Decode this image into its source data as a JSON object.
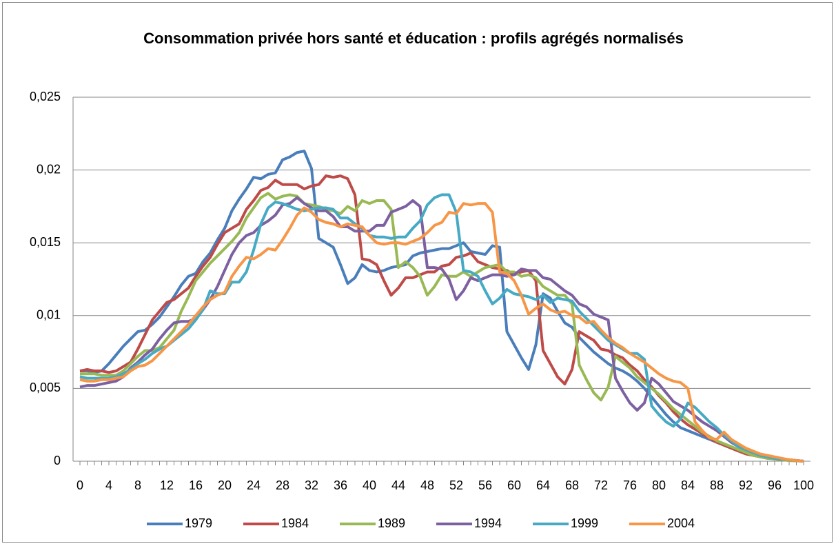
{
  "chart_data": {
    "type": "line",
    "title": "Consommation privée hors santé et éducation : profils agrégés normalisés",
    "x": [
      0,
      1,
      2,
      3,
      4,
      5,
      6,
      7,
      8,
      9,
      10,
      11,
      12,
      13,
      14,
      15,
      16,
      17,
      18,
      19,
      20,
      21,
      22,
      23,
      24,
      25,
      26,
      27,
      28,
      29,
      30,
      31,
      32,
      33,
      34,
      35,
      36,
      37,
      38,
      39,
      40,
      41,
      42,
      43,
      44,
      45,
      46,
      47,
      48,
      49,
      50,
      51,
      52,
      53,
      54,
      55,
      56,
      57,
      58,
      59,
      60,
      61,
      62,
      63,
      64,
      65,
      66,
      67,
      68,
      69,
      70,
      71,
      72,
      73,
      74,
      75,
      76,
      77,
      78,
      79,
      80,
      81,
      82,
      83,
      84,
      85,
      86,
      87,
      88,
      89,
      90,
      91,
      92,
      93,
      94,
      95,
      96,
      97,
      98,
      99,
      100
    ],
    "xlim": [
      0,
      100
    ],
    "xticks": [
      0,
      4,
      8,
      12,
      16,
      20,
      24,
      28,
      32,
      36,
      40,
      44,
      48,
      52,
      56,
      60,
      64,
      68,
      72,
      76,
      80,
      84,
      88,
      92,
      96,
      100
    ],
    "ylim": [
      0,
      0.025
    ],
    "yticks": [
      0,
      {
        "value": 0.005,
        "label": "0,005"
      },
      {
        "value": 0.01,
        "label": "0,01"
      },
      {
        "value": 0.015,
        "label": "0,015"
      },
      {
        "value": 0.02,
        "label": "0,02"
      },
      {
        "value": 0.025,
        "label": "0,025"
      }
    ],
    "grid": true,
    "legend": "bottom",
    "series": [
      {
        "name": "1979",
        "color": "#4a7ebb",
        "values": [
          0.0062,
          0.0062,
          0.0061,
          0.0062,
          0.0067,
          0.0073,
          0.0079,
          0.0084,
          0.0089,
          0.009,
          0.0094,
          0.0099,
          0.0106,
          0.0113,
          0.0121,
          0.0127,
          0.0129,
          0.0137,
          0.0143,
          0.0152,
          0.016,
          0.0172,
          0.018,
          0.0187,
          0.0195,
          0.0194,
          0.0197,
          0.0198,
          0.0207,
          0.0209,
          0.0212,
          0.0213,
          0.0201,
          0.0153,
          0.015,
          0.0147,
          0.0135,
          0.0122,
          0.0126,
          0.0135,
          0.0131,
          0.013,
          0.0131,
          0.0133,
          0.0134,
          0.0135,
          0.0141,
          0.0143,
          0.0144,
          0.0145,
          0.0146,
          0.0146,
          0.0148,
          0.015,
          0.0144,
          0.0143,
          0.0142,
          0.0148,
          0.0147,
          0.0089,
          0.008,
          0.0071,
          0.0063,
          0.008,
          0.0115,
          0.0112,
          0.0103,
          0.0095,
          0.0092,
          0.0085,
          0.008,
          0.0075,
          0.0071,
          0.0067,
          0.0064,
          0.0062,
          0.0059,
          0.0055,
          0.005,
          0.0044,
          0.0038,
          0.0032,
          0.0027,
          0.0023,
          0.0021,
          0.0019,
          0.0017,
          0.0015,
          0.0013,
          0.0011,
          0.0009,
          0.0007,
          0.0006,
          0.0005,
          0.0004,
          0.0003,
          0.0002,
          0.00015,
          0.0001,
          5e-05,
          0
        ]
      },
      {
        "name": "1984",
        "color": "#be4b48",
        "values": [
          0.0062,
          0.0063,
          0.0062,
          0.0062,
          0.0061,
          0.0062,
          0.0065,
          0.0068,
          0.0077,
          0.0087,
          0.0097,
          0.0103,
          0.0109,
          0.0111,
          0.0115,
          0.0119,
          0.0127,
          0.0134,
          0.014,
          0.0149,
          0.0157,
          0.016,
          0.0163,
          0.0173,
          0.0179,
          0.0186,
          0.0188,
          0.0193,
          0.019,
          0.019,
          0.019,
          0.0187,
          0.0189,
          0.019,
          0.0196,
          0.0195,
          0.0196,
          0.0194,
          0.0183,
          0.0139,
          0.0138,
          0.0135,
          0.0124,
          0.0114,
          0.0119,
          0.0126,
          0.0126,
          0.0128,
          0.013,
          0.013,
          0.0134,
          0.0135,
          0.014,
          0.0141,
          0.0143,
          0.0137,
          0.0135,
          0.0133,
          0.0132,
          0.0131,
          0.0128,
          0.013,
          0.0131,
          0.0124,
          0.0076,
          0.0067,
          0.0058,
          0.0053,
          0.0063,
          0.0089,
          0.0086,
          0.0083,
          0.0077,
          0.0076,
          0.0073,
          0.0071,
          0.0066,
          0.0062,
          0.0056,
          0.0051,
          0.0045,
          0.004,
          0.0034,
          0.0029,
          0.0025,
          0.0022,
          0.0019,
          0.0016,
          0.0013,
          0.0011,
          0.0009,
          0.0007,
          0.0005,
          0.0004,
          0.0003,
          0.0002,
          0.00015,
          0.0001,
          5e-05,
          3e-05,
          0
        ]
      },
      {
        "name": "1989",
        "color": "#98b954",
        "values": [
          0.006,
          0.006,
          0.006,
          0.0059,
          0.0059,
          0.0059,
          0.0062,
          0.0067,
          0.0072,
          0.0076,
          0.0076,
          0.0078,
          0.0084,
          0.009,
          0.0103,
          0.0113,
          0.0124,
          0.013,
          0.0136,
          0.0141,
          0.0146,
          0.0151,
          0.0157,
          0.0167,
          0.0174,
          0.0181,
          0.0184,
          0.018,
          0.0182,
          0.0183,
          0.0182,
          0.0177,
          0.0176,
          0.0175,
          0.0173,
          0.0172,
          0.017,
          0.0175,
          0.0172,
          0.0179,
          0.0177,
          0.0179,
          0.0179,
          0.0173,
          0.0133,
          0.0137,
          0.0133,
          0.0127,
          0.0114,
          0.012,
          0.0128,
          0.0127,
          0.0127,
          0.013,
          0.0127,
          0.013,
          0.0133,
          0.0134,
          0.0135,
          0.013,
          0.013,
          0.0127,
          0.0128,
          0.0126,
          0.012,
          0.0117,
          0.0114,
          0.0114,
          0.0108,
          0.0066,
          0.0056,
          0.0047,
          0.0042,
          0.0051,
          0.0072,
          0.0068,
          0.0064,
          0.0058,
          0.0054,
          0.005,
          0.0046,
          0.0041,
          0.0036,
          0.0032,
          0.0028,
          0.0024,
          0.002,
          0.0017,
          0.0014,
          0.0012,
          0.001,
          0.0008,
          0.0006,
          0.0004,
          0.0003,
          0.0002,
          0.00015,
          0.0001,
          5e-05,
          3e-05,
          0
        ]
      },
      {
        "name": "1994",
        "color": "#7d60a0",
        "values": [
          0.0051,
          0.0052,
          0.0052,
          0.0053,
          0.0054,
          0.0055,
          0.0058,
          0.0064,
          0.0068,
          0.0073,
          0.0077,
          0.0084,
          0.009,
          0.0095,
          0.0096,
          0.0096,
          0.0098,
          0.0104,
          0.0111,
          0.012,
          0.0131,
          0.0142,
          0.015,
          0.0155,
          0.0157,
          0.0162,
          0.0165,
          0.0169,
          0.0176,
          0.0177,
          0.0181,
          0.0177,
          0.0174,
          0.0172,
          0.0172,
          0.0168,
          0.0161,
          0.0161,
          0.0158,
          0.0158,
          0.0158,
          0.0162,
          0.0162,
          0.0171,
          0.0173,
          0.0175,
          0.0179,
          0.0175,
          0.0133,
          0.0133,
          0.0132,
          0.0125,
          0.0111,
          0.0117,
          0.0126,
          0.0124,
          0.0126,
          0.0128,
          0.0128,
          0.0127,
          0.0128,
          0.0132,
          0.0131,
          0.0131,
          0.0126,
          0.0125,
          0.0121,
          0.0117,
          0.0114,
          0.0108,
          0.0106,
          0.0101,
          0.0099,
          0.0097,
          0.0057,
          0.0048,
          0.004,
          0.0035,
          0.004,
          0.0057,
          0.0053,
          0.0047,
          0.0041,
          0.0038,
          0.0035,
          0.0031,
          0.0027,
          0.0024,
          0.0021,
          0.0017,
          0.0013,
          0.001,
          0.0008,
          0.0006,
          0.0004,
          0.0003,
          0.0002,
          0.00015,
          0.0001,
          5e-05,
          0
        ]
      },
      {
        "name": "1999",
        "color": "#46aac5",
        "values": [
          0.0058,
          0.0057,
          0.0057,
          0.0057,
          0.0057,
          0.0058,
          0.006,
          0.0063,
          0.0067,
          0.007,
          0.0074,
          0.0077,
          0.0079,
          0.0083,
          0.0087,
          0.0091,
          0.0097,
          0.0104,
          0.0117,
          0.0115,
          0.0115,
          0.0123,
          0.0123,
          0.013,
          0.0145,
          0.0163,
          0.0174,
          0.0178,
          0.0177,
          0.0175,
          0.0173,
          0.0172,
          0.0173,
          0.0174,
          0.0174,
          0.0173,
          0.0167,
          0.0167,
          0.0163,
          0.016,
          0.0155,
          0.0154,
          0.0154,
          0.0153,
          0.0154,
          0.0154,
          0.016,
          0.0165,
          0.0176,
          0.0181,
          0.0183,
          0.0183,
          0.0171,
          0.0131,
          0.013,
          0.0127,
          0.0117,
          0.0108,
          0.0112,
          0.0118,
          0.0115,
          0.0114,
          0.0113,
          0.0111,
          0.0114,
          0.0109,
          0.0112,
          0.0111,
          0.011,
          0.0103,
          0.0098,
          0.0093,
          0.0088,
          0.0083,
          0.008,
          0.0077,
          0.0074,
          0.0074,
          0.007,
          0.0038,
          0.0032,
          0.0027,
          0.0024,
          0.0029,
          0.004,
          0.0037,
          0.0032,
          0.0027,
          0.0023,
          0.0018,
          0.0014,
          0.001,
          0.0008,
          0.0006,
          0.0004,
          0.0003,
          0.0002,
          0.00015,
          0.0001,
          5e-05,
          0
        ]
      },
      {
        "name": "2004",
        "color": "#f79646",
        "values": [
          0.0056,
          0.0055,
          0.0055,
          0.0056,
          0.0056,
          0.0057,
          0.0058,
          0.0062,
          0.0065,
          0.0066,
          0.0069,
          0.0074,
          0.0079,
          0.0084,
          0.0089,
          0.0094,
          0.01,
          0.0106,
          0.0111,
          0.0114,
          0.0116,
          0.0127,
          0.0134,
          0.014,
          0.0139,
          0.0142,
          0.0146,
          0.0145,
          0.0152,
          0.016,
          0.0169,
          0.0174,
          0.0171,
          0.0166,
          0.0164,
          0.0163,
          0.0161,
          0.0163,
          0.0162,
          0.0161,
          0.0155,
          0.015,
          0.0149,
          0.015,
          0.015,
          0.0149,
          0.0151,
          0.0153,
          0.0157,
          0.0162,
          0.0164,
          0.0171,
          0.017,
          0.0177,
          0.0176,
          0.0177,
          0.0177,
          0.0171,
          0.013,
          0.0129,
          0.0124,
          0.0114,
          0.0101,
          0.0105,
          0.0108,
          0.0104,
          0.0102,
          0.0103,
          0.01,
          0.0099,
          0.0095,
          0.0096,
          0.009,
          0.0085,
          0.0081,
          0.0078,
          0.0074,
          0.0071,
          0.0068,
          0.0064,
          0.006,
          0.0057,
          0.0055,
          0.0054,
          0.005,
          0.0027,
          0.0021,
          0.0016,
          0.0015,
          0.002,
          0.0015,
          0.0012,
          0.0009,
          0.0007,
          0.0005,
          0.0004,
          0.0003,
          0.0002,
          0.0001,
          5e-05,
          0
        ]
      }
    ]
  }
}
